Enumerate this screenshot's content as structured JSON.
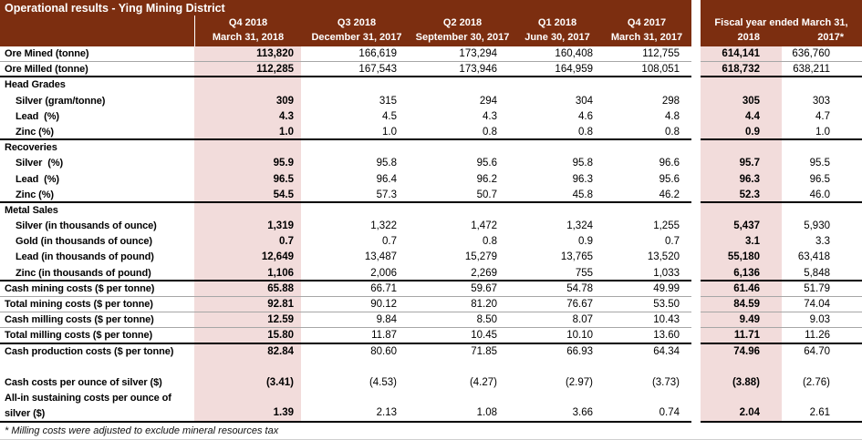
{
  "title": "Operational results - Ying Mining District",
  "footnote": "* Milling costs were adjusted to exclude mineral resources tax",
  "colors": {
    "header_bg": "#7C2E10",
    "header_text": "#FFFFFF",
    "highlight_bg": "#F2DCDB",
    "thin_border": "#A6A6A6",
    "thick_border": "#000000"
  },
  "columns": {
    "quarters": [
      {
        "label": "Q4 2018",
        "date": "March 31, 2018",
        "highlight": true
      },
      {
        "label": "Q3 2018",
        "date": "December 31, 2017",
        "highlight": false
      },
      {
        "label": "Q2 2018",
        "date": "September 30, 2017",
        "highlight": false
      },
      {
        "label": "Q1 2018",
        "date": "June 30, 2017",
        "highlight": false
      },
      {
        "label": "Q4 2017",
        "date": "March 31, 2017",
        "highlight": false
      }
    ],
    "fiscal": {
      "title": "Fiscal year ended March 31,",
      "years": [
        {
          "label": "2018",
          "highlight": true
        },
        {
          "label": "2017*",
          "highlight": false
        }
      ]
    }
  },
  "rows": [
    {
      "type": "data",
      "label": "Ore Mined (tonne)",
      "indent": false,
      "border": "thin",
      "values": [
        "113,820",
        "166,619",
        "173,294",
        "160,408",
        "112,755"
      ],
      "fiscal": [
        "614,141",
        "636,760"
      ]
    },
    {
      "type": "data",
      "label": "Ore Milled (tonne)",
      "indent": false,
      "border": "thick",
      "values": [
        "112,285",
        "167,543",
        "173,946",
        "164,959",
        "108,051"
      ],
      "fiscal": [
        "618,732",
        "638,211"
      ]
    },
    {
      "type": "section",
      "label": "Head Grades",
      "indent": false,
      "border": "none",
      "values": [
        "",
        "",
        "",
        "",
        ""
      ],
      "fiscal": [
        "",
        ""
      ]
    },
    {
      "type": "data",
      "label": "Silver (gram/tonne)",
      "indent": true,
      "border": "none",
      "values": [
        "309",
        "315",
        "294",
        "304",
        "298"
      ],
      "fiscal": [
        "305",
        "303"
      ]
    },
    {
      "type": "data",
      "label": "Lead  (%)",
      "indent": true,
      "border": "none",
      "values": [
        "4.3",
        "4.5",
        "4.3",
        "4.6",
        "4.8"
      ],
      "fiscal": [
        "4.4",
        "4.7"
      ]
    },
    {
      "type": "data",
      "label": "Zinc (%)",
      "indent": true,
      "border": "thick",
      "values": [
        "1.0",
        "1.0",
        "0.8",
        "0.8",
        "0.8"
      ],
      "fiscal": [
        "0.9",
        "1.0"
      ]
    },
    {
      "type": "section",
      "label": "Recoveries",
      "indent": false,
      "border": "none",
      "values": [
        "",
        "",
        "",
        "",
        ""
      ],
      "fiscal": [
        "",
        ""
      ]
    },
    {
      "type": "data",
      "label": "Silver  (%)",
      "indent": true,
      "border": "none",
      "values": [
        "95.9",
        "95.8",
        "95.6",
        "95.8",
        "96.6"
      ],
      "fiscal": [
        "95.7",
        "95.5"
      ]
    },
    {
      "type": "data",
      "label": "Lead  (%)",
      "indent": true,
      "border": "none",
      "values": [
        "96.5",
        "96.4",
        "96.2",
        "96.3",
        "95.6"
      ],
      "fiscal": [
        "96.3",
        "96.5"
      ]
    },
    {
      "type": "data",
      "label": "Zinc (%)",
      "indent": true,
      "border": "thick",
      "values": [
        "54.5",
        "57.3",
        "50.7",
        "45.8",
        "46.2"
      ],
      "fiscal": [
        "52.3",
        "46.0"
      ]
    },
    {
      "type": "section",
      "label": "Metal Sales",
      "indent": false,
      "border": "none",
      "values": [
        "",
        "",
        "",
        "",
        ""
      ],
      "fiscal": [
        "",
        ""
      ]
    },
    {
      "type": "data",
      "label": "Silver (in thousands of ounce)",
      "indent": true,
      "border": "none",
      "values": [
        "1,319",
        "1,322",
        "1,472",
        "1,324",
        "1,255"
      ],
      "fiscal": [
        "5,437",
        "5,930"
      ]
    },
    {
      "type": "data",
      "label": "Gold (in thousands of ounce)",
      "indent": true,
      "border": "none",
      "values": [
        "0.7",
        "0.7",
        "0.8",
        "0.9",
        "0.7"
      ],
      "fiscal": [
        "3.1",
        "3.3"
      ]
    },
    {
      "type": "data",
      "label": "Lead (in thousands of pound)",
      "indent": true,
      "border": "none",
      "values": [
        "12,649",
        "13,487",
        "15,279",
        "13,765",
        "13,520"
      ],
      "fiscal": [
        "55,180",
        "63,418"
      ]
    },
    {
      "type": "data",
      "label": "Zinc (in thousands of pound)",
      "indent": true,
      "border": "thick",
      "values": [
        "1,106",
        "2,006",
        "2,269",
        "755",
        "1,033"
      ],
      "fiscal": [
        "6,136",
        "5,848"
      ]
    },
    {
      "type": "data",
      "label": "Cash mining costs ($ per tonne)",
      "indent": false,
      "border": "thin",
      "values": [
        "65.88",
        "66.71",
        "59.67",
        "54.78",
        "49.99"
      ],
      "fiscal": [
        "61.46",
        "51.79"
      ]
    },
    {
      "type": "data",
      "label": "Total mining costs ($ per tonne)",
      "indent": false,
      "border": "thin",
      "values": [
        "92.81",
        "90.12",
        "81.20",
        "76.67",
        "53.50"
      ],
      "fiscal": [
        "84.59",
        "74.04"
      ]
    },
    {
      "type": "data",
      "label": "Cash milling costs ($ per tonne)",
      "indent": false,
      "border": "thin",
      "values": [
        "12.59",
        "9.84",
        "8.50",
        "8.07",
        "10.43"
      ],
      "fiscal": [
        "9.49",
        "9.03"
      ]
    },
    {
      "type": "data",
      "label": "Total milling costs ($ per tonne)",
      "indent": false,
      "border": "thick",
      "values": [
        "15.80",
        "11.87",
        "10.45",
        "10.10",
        "13.60"
      ],
      "fiscal": [
        "11.71",
        "11.26"
      ]
    },
    {
      "type": "data",
      "label": "Cash production costs ($ per tonne)",
      "indent": false,
      "border": "none",
      "values": [
        "82.84",
        "80.60",
        "71.85",
        "66.93",
        "64.34"
      ],
      "fiscal": [
        "74.96",
        "64.70"
      ]
    },
    {
      "type": "spacer",
      "label": "",
      "indent": false,
      "border": "none",
      "values": [
        "",
        "",
        "",
        "",
        ""
      ],
      "fiscal": [
        "",
        ""
      ]
    },
    {
      "type": "data",
      "label": "Cash costs per ounce of silver ($)",
      "indent": false,
      "border": "none",
      "values": [
        "(3.41)",
        "(4.53)",
        "(4.27)",
        "(2.97)",
        "(3.73)"
      ],
      "fiscal": [
        "(3.88)",
        "(2.76)"
      ]
    },
    {
      "type": "data",
      "tall": true,
      "label": "All-in sustaining costs per ounce of\nsilver ($)",
      "indent": false,
      "border": "thick",
      "values": [
        "1.39",
        "2.13",
        "1.08",
        "3.66",
        "0.74"
      ],
      "fiscal": [
        "2.04",
        "2.61"
      ]
    }
  ]
}
